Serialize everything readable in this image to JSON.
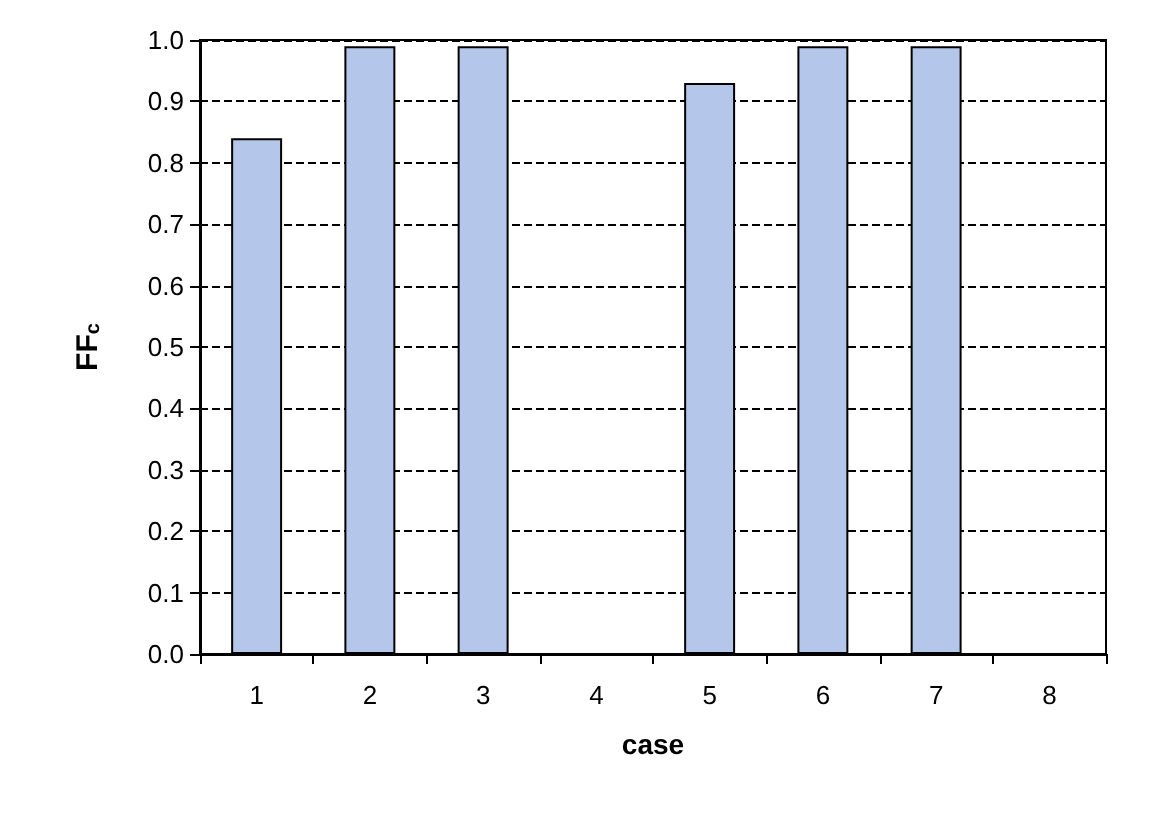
{
  "chart_data": {
    "type": "bar",
    "xlabel": "case",
    "ylabel": "FF$_{c}$",
    "categories": [
      "1",
      "2",
      "3",
      "4",
      "5",
      "6",
      "7",
      "8"
    ],
    "values": [
      0.84,
      0.99,
      0.99,
      null,
      0.93,
      0.99,
      0.99,
      null
    ],
    "color": "#b4c6ea",
    "ylim": [
      0,
      1
    ],
    "yticks": [
      {
        "value": 0,
        "label": "0.0"
      },
      {
        "value": 0.1,
        "label": "0.1"
      },
      {
        "value": 0.2,
        "label": "0.2"
      },
      {
        "value": 0.3,
        "label": "0.3"
      },
      {
        "value": 0.4,
        "label": "0.4"
      },
      {
        "value": 0.5,
        "label": "0.5"
      },
      {
        "value": 0.6,
        "label": "0.6"
      },
      {
        "value": 0.7,
        "label": "0.7"
      },
      {
        "value": 0.8,
        "label": "0.8"
      },
      {
        "value": 0.9,
        "label": "0.9"
      },
      {
        "value": 1,
        "label": "1.0"
      }
    ],
    "grid": "y"
  }
}
